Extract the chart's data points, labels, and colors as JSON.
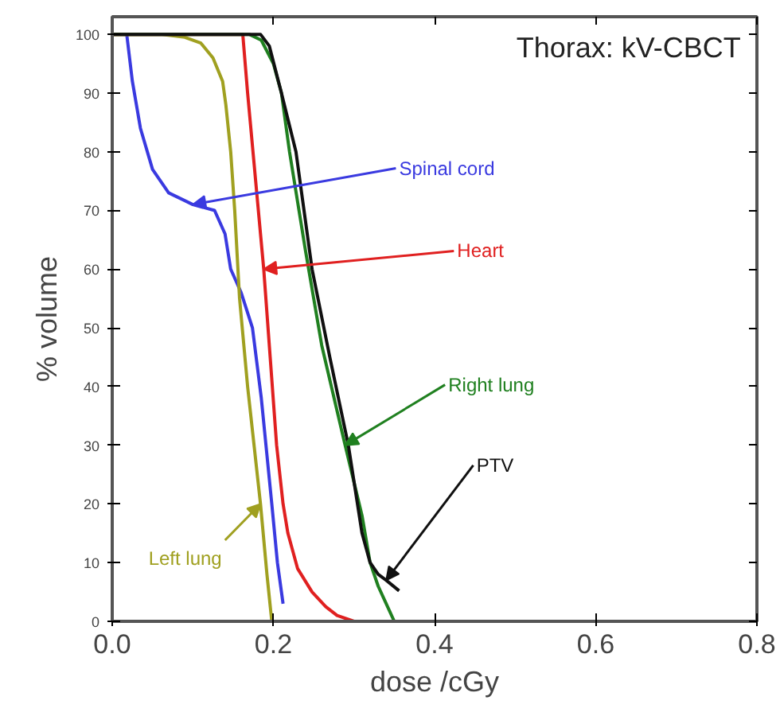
{
  "chart_data": {
    "type": "line",
    "title": "Thorax: kV-CBCT",
    "xlabel": "dose /cGy",
    "ylabel": "% volume",
    "xlim": [
      0,
      0.8
    ],
    "ylim": [
      0,
      103
    ],
    "xticks": [
      {
        "value": 0,
        "label": "0.0"
      },
      {
        "value": 0.2,
        "label": "0.2"
      },
      {
        "value": 0.4,
        "label": "0.4"
      },
      {
        "value": 0.6,
        "label": "0.6"
      },
      {
        "value": 0.8,
        "label": "0.8"
      }
    ],
    "yticks": [
      0,
      10,
      20,
      30,
      40,
      50,
      60,
      70,
      80,
      90,
      100
    ],
    "grid": false,
    "marker": "none",
    "line_style": "solid",
    "series": [
      {
        "name": "Spinal cord",
        "color": "#3a3ae0",
        "x": [
          0.018,
          0.025,
          0.035,
          0.05,
          0.07,
          0.1,
          0.127,
          0.14,
          0.147,
          0.16,
          0.174,
          0.185,
          0.198,
          0.205,
          0.212
        ],
        "values": [
          100,
          92,
          84,
          77,
          73,
          71,
          70,
          66,
          60,
          56,
          50,
          38,
          20,
          10,
          3
        ]
      },
      {
        "name": "Left lung",
        "color": "#a0a020",
        "x": [
          0,
          0.06,
          0.09,
          0.11,
          0.125,
          0.137,
          0.141,
          0.147,
          0.152,
          0.158,
          0.168,
          0.184,
          0.192,
          0.198
        ],
        "values": [
          100,
          100,
          99.5,
          98.5,
          96,
          92,
          88,
          80,
          70,
          55,
          40,
          20,
          8,
          0
        ]
      },
      {
        "name": "Heart",
        "color": "#e02020",
        "x": [
          0,
          0.162,
          0.168,
          0.178,
          0.188,
          0.196,
          0.204,
          0.212,
          0.218,
          0.23,
          0.248,
          0.265,
          0.279,
          0.3
        ],
        "values": [
          100,
          100,
          90,
          75,
          60,
          45,
          30,
          20,
          15,
          9,
          5,
          2.5,
          1,
          0
        ]
      },
      {
        "name": "Right lung",
        "color": "#208020",
        "x": [
          0,
          0.17,
          0.185,
          0.2,
          0.21,
          0.22,
          0.24,
          0.26,
          0.289,
          0.31,
          0.32,
          0.33,
          0.34,
          0.35
        ],
        "values": [
          100,
          100,
          99,
          95,
          90,
          80,
          63,
          47,
          30,
          18,
          10,
          6,
          3,
          0
        ]
      },
      {
        "name": "PTV",
        "color": "#101010",
        "x": [
          0,
          0.184,
          0.195,
          0.21,
          0.228,
          0.248,
          0.27,
          0.293,
          0.31,
          0.32,
          0.33,
          0.34,
          0.356
        ],
        "values": [
          100,
          100,
          98,
          90,
          80,
          60,
          45,
          30,
          15,
          10,
          8,
          7,
          5.2
        ]
      }
    ]
  }
}
